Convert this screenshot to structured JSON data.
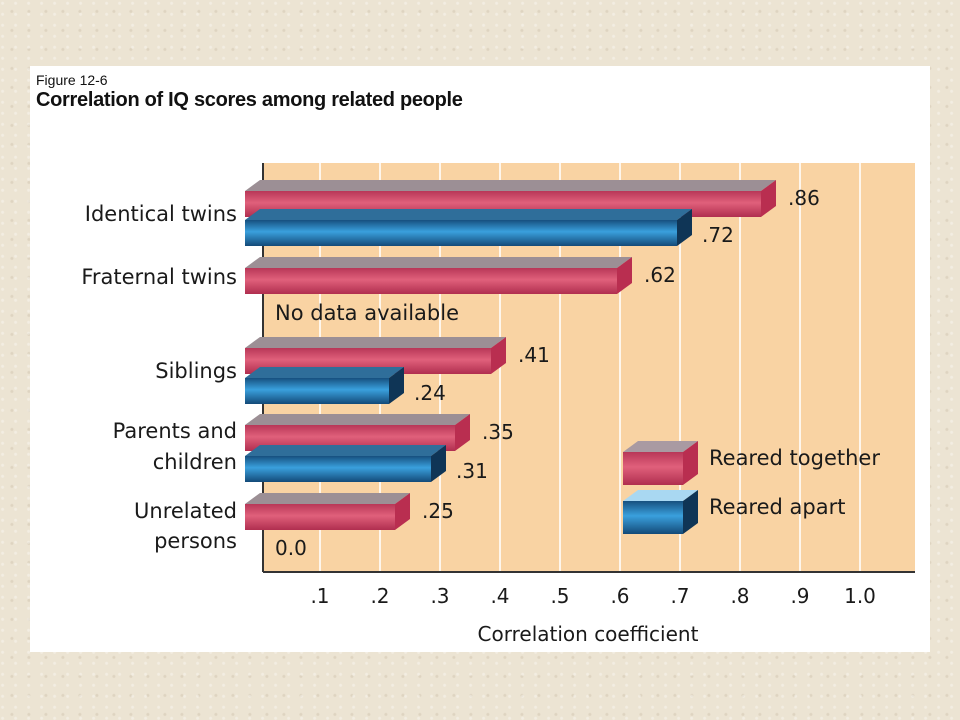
{
  "figure": {
    "label": "Figure 12-6",
    "title": "Correlation of IQ scores among related people"
  },
  "colors": {
    "panel": "#f9d3a3",
    "together": "#c93a5b",
    "apart": "#1d5f96",
    "grid": "#ffffff",
    "axis": "#333333"
  },
  "chart_data": {
    "type": "bar",
    "orientation": "horizontal",
    "title": "Correlation of IQ scores among related people",
    "xlabel": "Correlation coefficient",
    "ylabel": "",
    "xlim": [
      0,
      1.1
    ],
    "grid": true,
    "legend_position": "bottom-right",
    "ticks": [
      ".1",
      ".2",
      ".3",
      ".4",
      ".5",
      ".6",
      ".7",
      ".8",
      ".9",
      "1.0"
    ],
    "tick_values": [
      0.1,
      0.2,
      0.3,
      0.4,
      0.5,
      0.6,
      0.7,
      0.8,
      0.9,
      1.0
    ],
    "categories": [
      [
        "Identical twins"
      ],
      [
        "Fraternal twins"
      ],
      [
        "Siblings"
      ],
      [
        "Parents and",
        "children"
      ],
      [
        "Unrelated",
        "persons"
      ]
    ],
    "series": [
      {
        "name": "Reared together",
        "values": [
          0.86,
          0.62,
          0.41,
          0.35,
          0.25
        ],
        "labels": [
          ".86",
          ".62",
          ".41",
          ".35",
          ".25"
        ]
      },
      {
        "name": "Reared apart",
        "values": [
          0.72,
          null,
          0.24,
          0.31,
          0.0
        ],
        "labels": [
          ".72",
          "No data available",
          ".24",
          ".31",
          "0.0"
        ]
      }
    ]
  }
}
